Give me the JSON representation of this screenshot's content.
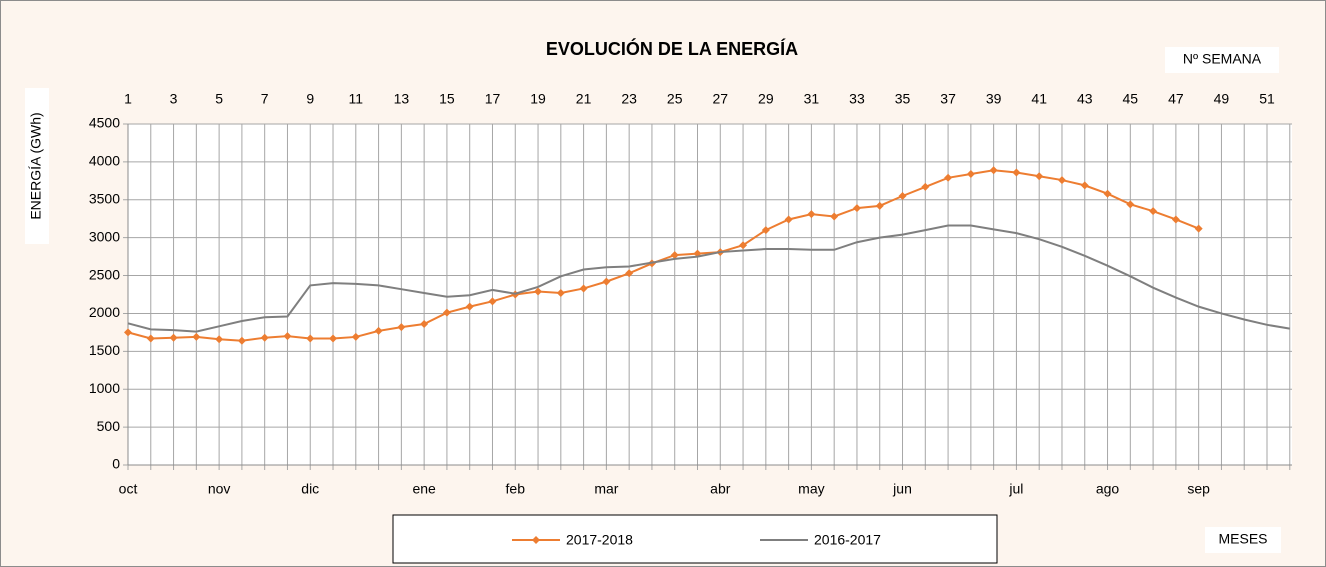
{
  "chart_data": {
    "type": "line",
    "title": "EVOLUCIÓN DE LA ENERGÍA",
    "x_label": "Nº SEMANA",
    "y_label": "ENERGÍA (GWh)",
    "month_axis_label": "MESES",
    "x": [
      1,
      2,
      3,
      4,
      5,
      6,
      7,
      8,
      9,
      10,
      11,
      12,
      13,
      14,
      15,
      16,
      17,
      18,
      19,
      20,
      21,
      22,
      23,
      24,
      25,
      26,
      27,
      28,
      29,
      30,
      31,
      32,
      33,
      34,
      35,
      36,
      37,
      38,
      39,
      40,
      41,
      42,
      43,
      44,
      45,
      46,
      47,
      48,
      49,
      50,
      51,
      52
    ],
    "xlim": [
      1,
      52
    ],
    "xticks": [
      1,
      3,
      5,
      7,
      9,
      11,
      13,
      15,
      17,
      19,
      21,
      23,
      25,
      27,
      29,
      31,
      33,
      35,
      37,
      39,
      41,
      43,
      45,
      47,
      49,
      51
    ],
    "month_labels": [
      {
        "week": 1,
        "label": "oct"
      },
      {
        "week": 5,
        "label": "nov"
      },
      {
        "week": 9,
        "label": "dic"
      },
      {
        "week": 14,
        "label": "ene"
      },
      {
        "week": 18,
        "label": "feb"
      },
      {
        "week": 22,
        "label": "mar"
      },
      {
        "week": 27,
        "label": "abr"
      },
      {
        "week": 31,
        "label": "may"
      },
      {
        "week": 35,
        "label": "jun"
      },
      {
        "week": 40,
        "label": "jul"
      },
      {
        "week": 44,
        "label": "ago"
      },
      {
        "week": 48,
        "label": "sep"
      }
    ],
    "ylim": [
      0,
      4500
    ],
    "yticks": [
      0,
      500,
      1000,
      1500,
      2000,
      2500,
      3000,
      3500,
      4000,
      4500
    ],
    "grid": true,
    "series": [
      {
        "name": "2017-2018",
        "color": "#ed7d31",
        "marker": true,
        "values": [
          1750,
          1670,
          1680,
          1690,
          1660,
          1640,
          1680,
          1700,
          1670,
          1670,
          1690,
          1770,
          1820,
          1860,
          2010,
          2090,
          2160,
          2250,
          2290,
          2270,
          2330,
          2420,
          2530,
          2660,
          2770,
          2790,
          2810,
          2900,
          3100,
          3240,
          3310,
          3280,
          3390,
          3420,
          3550,
          3670,
          3790,
          3840,
          3890,
          3860,
          3810,
          3760,
          3690,
          3580,
          3440,
          3350,
          3240,
          3120,
          null,
          null,
          null,
          null
        ]
      },
      {
        "name": "2016-2017",
        "color": "#7f7f7f",
        "marker": false,
        "values": [
          1870,
          1790,
          1780,
          1760,
          1830,
          1900,
          1950,
          1960,
          2370,
          2400,
          2390,
          2370,
          2320,
          2270,
          2220,
          2240,
          2310,
          2260,
          2350,
          2490,
          2580,
          2610,
          2620,
          2670,
          2720,
          2750,
          2810,
          2830,
          2850,
          2850,
          2840,
          2840,
          2940,
          3000,
          3040,
          3100,
          3160,
          3160,
          3110,
          3060,
          2980,
          2880,
          2760,
          2630,
          2490,
          2340,
          2210,
          2090,
          2000,
          1920,
          1850,
          1800
        ]
      }
    ]
  }
}
